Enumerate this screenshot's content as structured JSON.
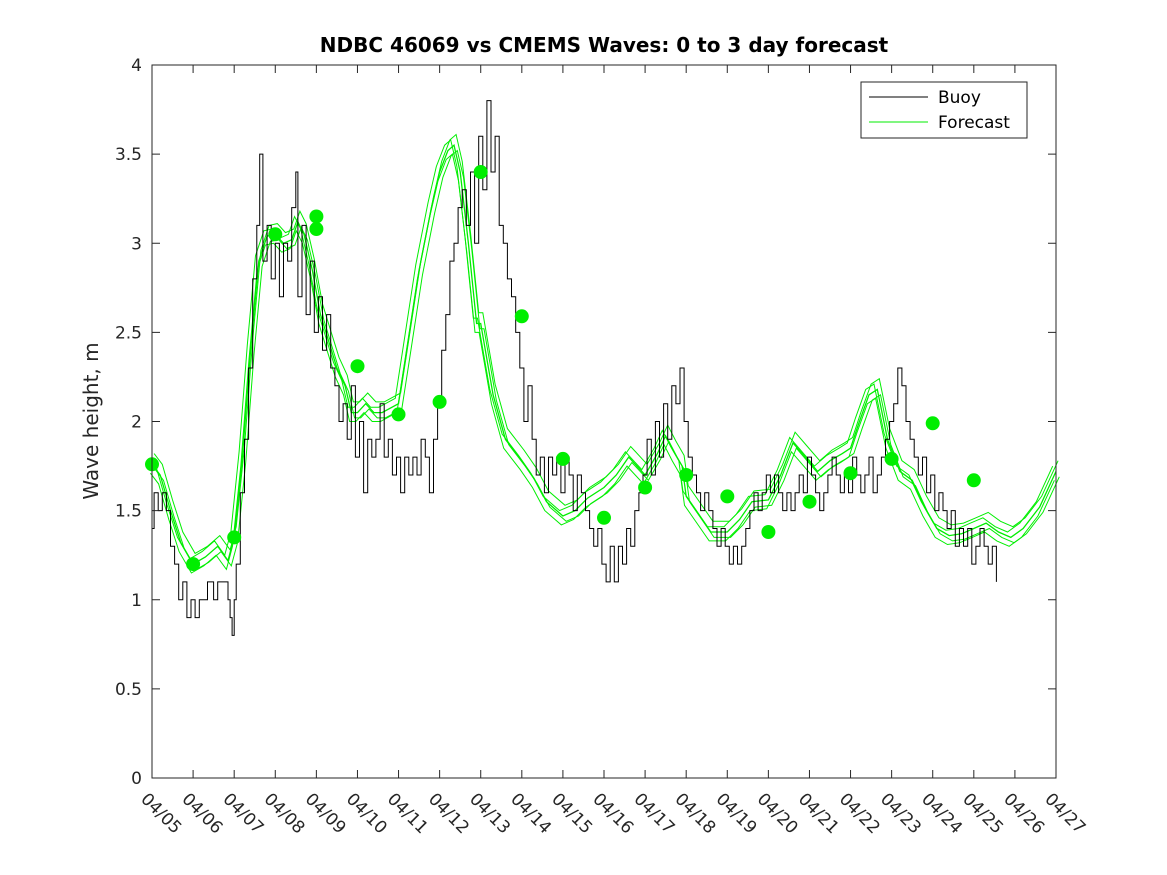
{
  "chart_data": {
    "type": "line",
    "title": "NDBC 46069 vs CMEMS Waves: 0 to 3 day forecast",
    "xlabel": "",
    "ylabel": "Wave height, m",
    "x_ticks": [
      "04/05",
      "04/06",
      "04/07",
      "04/08",
      "04/09",
      "04/10",
      "04/11",
      "04/12",
      "04/13",
      "04/14",
      "04/15",
      "04/16",
      "04/17",
      "04/18",
      "04/19",
      "04/20",
      "04/21",
      "04/22",
      "04/23",
      "04/24",
      "04/25",
      "04/26",
      "04/27"
    ],
    "y_ticks": [
      "0",
      "0.5",
      "1",
      "1.5",
      "2",
      "2.5",
      "3",
      "3.5",
      "4"
    ],
    "xlim": [
      0,
      22
    ],
    "ylim": [
      0,
      4
    ],
    "grid": false,
    "legend_position": "top-right",
    "colors": {
      "buoy": "#000000",
      "forecast": "#00ee00",
      "axes": "#262626"
    },
    "series": [
      {
        "name": "Buoy",
        "points": [
          [
            0,
            1.4
          ],
          [
            0.05,
            1.6
          ],
          [
            0.15,
            1.5
          ],
          [
            0.25,
            1.6
          ],
          [
            0.35,
            1.5
          ],
          [
            0.45,
            1.3
          ],
          [
            0.55,
            1.2
          ],
          [
            0.65,
            1.0
          ],
          [
            0.75,
            1.1
          ],
          [
            0.85,
            0.9
          ],
          [
            0.95,
            1.0
          ],
          [
            1.05,
            0.9
          ],
          [
            1.15,
            1.0
          ],
          [
            1.25,
            1.0
          ],
          [
            1.35,
            1.1
          ],
          [
            1.5,
            1.0
          ],
          [
            1.6,
            1.1
          ],
          [
            1.75,
            1.1
          ],
          [
            1.85,
            1.0
          ],
          [
            1.9,
            0.9
          ],
          [
            1.95,
            0.8
          ],
          [
            2.0,
            1.0
          ],
          [
            2.05,
            1.2
          ],
          [
            2.15,
            1.6
          ],
          [
            2.25,
            1.9
          ],
          [
            2.35,
            2.3
          ],
          [
            2.45,
            2.8
          ],
          [
            2.55,
            3.1
          ],
          [
            2.62,
            3.5
          ],
          [
            2.7,
            2.9
          ],
          [
            2.8,
            3.1
          ],
          [
            2.9,
            2.8
          ],
          [
            3.0,
            3.0
          ],
          [
            3.1,
            2.7
          ],
          [
            3.2,
            3.0
          ],
          [
            3.3,
            2.9
          ],
          [
            3.4,
            3.2
          ],
          [
            3.5,
            3.4
          ],
          [
            3.55,
            2.7
          ],
          [
            3.65,
            3.1
          ],
          [
            3.75,
            2.6
          ],
          [
            3.85,
            2.9
          ],
          [
            3.95,
            2.5
          ],
          [
            4.05,
            2.7
          ],
          [
            4.15,
            2.4
          ],
          [
            4.25,
            2.6
          ],
          [
            4.35,
            2.3
          ],
          [
            4.45,
            2.2
          ],
          [
            4.55,
            2.0
          ],
          [
            4.65,
            2.1
          ],
          [
            4.75,
            1.9
          ],
          [
            4.85,
            2.2
          ],
          [
            4.95,
            1.8
          ],
          [
            5.05,
            2.0
          ],
          [
            5.15,
            1.6
          ],
          [
            5.25,
            1.9
          ],
          [
            5.35,
            1.8
          ],
          [
            5.45,
            1.9
          ],
          [
            5.55,
            2.1
          ],
          [
            5.65,
            1.8
          ],
          [
            5.75,
            1.9
          ],
          [
            5.85,
            1.7
          ],
          [
            5.95,
            1.8
          ],
          [
            6.05,
            1.6
          ],
          [
            6.15,
            1.8
          ],
          [
            6.25,
            1.7
          ],
          [
            6.35,
            1.8
          ],
          [
            6.45,
            1.7
          ],
          [
            6.55,
            1.9
          ],
          [
            6.65,
            1.8
          ],
          [
            6.75,
            1.6
          ],
          [
            6.85,
            1.9
          ],
          [
            6.95,
            2.1
          ],
          [
            7.05,
            2.4
          ],
          [
            7.15,
            2.6
          ],
          [
            7.25,
            2.9
          ],
          [
            7.35,
            3.0
          ],
          [
            7.45,
            3.2
          ],
          [
            7.55,
            3.3
          ],
          [
            7.65,
            3.1
          ],
          [
            7.75,
            3.4
          ],
          [
            7.85,
            3.0
          ],
          [
            7.95,
            3.6
          ],
          [
            8.05,
            3.3
          ],
          [
            8.15,
            3.8
          ],
          [
            8.25,
            3.4
          ],
          [
            8.35,
            3.6
          ],
          [
            8.45,
            3.1
          ],
          [
            8.55,
            3.0
          ],
          [
            8.65,
            2.8
          ],
          [
            8.75,
            2.7
          ],
          [
            8.85,
            2.5
          ],
          [
            8.95,
            2.3
          ],
          [
            9.05,
            2.0
          ],
          [
            9.15,
            2.2
          ],
          [
            9.25,
            1.9
          ],
          [
            9.35,
            1.7
          ],
          [
            9.45,
            1.8
          ],
          [
            9.55,
            1.6
          ],
          [
            9.65,
            1.8
          ],
          [
            9.75,
            1.7
          ],
          [
            9.85,
            1.8
          ],
          [
            9.95,
            1.6
          ],
          [
            10.05,
            1.8
          ],
          [
            10.15,
            1.7
          ],
          [
            10.25,
            1.5
          ],
          [
            10.35,
            1.7
          ],
          [
            10.45,
            1.6
          ],
          [
            10.55,
            1.5
          ],
          [
            10.65,
            1.4
          ],
          [
            10.75,
            1.3
          ],
          [
            10.85,
            1.4
          ],
          [
            10.95,
            1.2
          ],
          [
            11.05,
            1.1
          ],
          [
            11.15,
            1.3
          ],
          [
            11.25,
            1.1
          ],
          [
            11.35,
            1.3
          ],
          [
            11.45,
            1.2
          ],
          [
            11.55,
            1.4
          ],
          [
            11.65,
            1.3
          ],
          [
            11.75,
            1.5
          ],
          [
            11.85,
            1.6
          ],
          [
            11.95,
            1.7
          ],
          [
            12.05,
            1.9
          ],
          [
            12.15,
            1.7
          ],
          [
            12.25,
            2.0
          ],
          [
            12.35,
            1.8
          ],
          [
            12.45,
            2.1
          ],
          [
            12.55,
            1.9
          ],
          [
            12.65,
            2.2
          ],
          [
            12.75,
            2.1
          ],
          [
            12.85,
            2.3
          ],
          [
            12.95,
            2.0
          ],
          [
            13.05,
            1.8
          ],
          [
            13.15,
            1.7
          ],
          [
            13.25,
            1.6
          ],
          [
            13.35,
            1.5
          ],
          [
            13.45,
            1.6
          ],
          [
            13.55,
            1.5
          ],
          [
            13.65,
            1.4
          ],
          [
            13.75,
            1.3
          ],
          [
            13.85,
            1.4
          ],
          [
            13.95,
            1.3
          ],
          [
            14.05,
            1.2
          ],
          [
            14.15,
            1.3
          ],
          [
            14.25,
            1.2
          ],
          [
            14.35,
            1.3
          ],
          [
            14.45,
            1.4
          ],
          [
            14.55,
            1.5
          ],
          [
            14.65,
            1.6
          ],
          [
            14.75,
            1.5
          ],
          [
            14.85,
            1.6
          ],
          [
            14.95,
            1.7
          ],
          [
            15.05,
            1.6
          ],
          [
            15.15,
            1.7
          ],
          [
            15.25,
            1.6
          ],
          [
            15.35,
            1.5
          ],
          [
            15.45,
            1.6
          ],
          [
            15.55,
            1.5
          ],
          [
            15.65,
            1.6
          ],
          [
            15.75,
            1.7
          ],
          [
            15.85,
            1.6
          ],
          [
            15.95,
            1.8
          ],
          [
            16.05,
            1.7
          ],
          [
            16.15,
            1.6
          ],
          [
            16.25,
            1.5
          ],
          [
            16.35,
            1.6
          ],
          [
            16.45,
            1.7
          ],
          [
            16.55,
            1.8
          ],
          [
            16.65,
            1.7
          ],
          [
            16.75,
            1.6
          ],
          [
            16.85,
            1.7
          ],
          [
            16.95,
            1.6
          ],
          [
            17.05,
            1.8
          ],
          [
            17.15,
            1.7
          ],
          [
            17.25,
            1.6
          ],
          [
            17.35,
            1.7
          ],
          [
            17.45,
            1.8
          ],
          [
            17.55,
            1.6
          ],
          [
            17.65,
            1.7
          ],
          [
            17.75,
            1.8
          ],
          [
            17.85,
            1.9
          ],
          [
            17.95,
            2.0
          ],
          [
            18.05,
            2.1
          ],
          [
            18.15,
            2.3
          ],
          [
            18.25,
            2.2
          ],
          [
            18.35,
            2.0
          ],
          [
            18.45,
            1.9
          ],
          [
            18.55,
            1.8
          ],
          [
            18.65,
            1.7
          ],
          [
            18.75,
            1.8
          ],
          [
            18.85,
            1.6
          ],
          [
            18.95,
            1.7
          ],
          [
            19.05,
            1.5
          ],
          [
            19.15,
            1.6
          ],
          [
            19.25,
            1.5
          ],
          [
            19.35,
            1.4
          ],
          [
            19.45,
            1.5
          ],
          [
            19.55,
            1.3
          ],
          [
            19.65,
            1.4
          ],
          [
            19.75,
            1.3
          ],
          [
            19.85,
            1.4
          ],
          [
            19.95,
            1.2
          ],
          [
            20.05,
            1.3
          ],
          [
            20.15,
            1.4
          ],
          [
            20.25,
            1.3
          ],
          [
            20.35,
            1.2
          ],
          [
            20.45,
            1.3
          ],
          [
            20.55,
            1.1
          ]
        ]
      },
      {
        "name": "Forecast",
        "points": [
          [
            0,
            1.76
          ],
          [
            0.2,
            1.7
          ],
          [
            0.45,
            1.5
          ],
          [
            0.7,
            1.32
          ],
          [
            1.0,
            1.2
          ],
          [
            1.3,
            1.24
          ],
          [
            1.6,
            1.3
          ],
          [
            1.85,
            1.22
          ],
          [
            2.0,
            1.35
          ],
          [
            2.2,
            1.8
          ],
          [
            2.4,
            2.4
          ],
          [
            2.6,
            2.9
          ],
          [
            2.8,
            3.04
          ],
          [
            3.0,
            3.05
          ],
          [
            3.2,
            3.0
          ],
          [
            3.4,
            3.02
          ],
          [
            3.55,
            3.12
          ],
          [
            3.7,
            3.05
          ],
          [
            3.9,
            2.85
          ],
          [
            4.1,
            2.6
          ],
          [
            4.3,
            2.45
          ],
          [
            4.5,
            2.3
          ],
          [
            4.7,
            2.2
          ],
          [
            4.85,
            2.05
          ],
          [
            5.0,
            2.05
          ],
          [
            5.2,
            2.1
          ],
          [
            5.4,
            2.05
          ],
          [
            5.6,
            2.05
          ],
          [
            6.0,
            2.1
          ],
          [
            6.2,
            2.4
          ],
          [
            6.5,
            2.85
          ],
          [
            6.8,
            3.2
          ],
          [
            7.0,
            3.4
          ],
          [
            7.2,
            3.52
          ],
          [
            7.35,
            3.55
          ],
          [
            7.5,
            3.4
          ],
          [
            7.7,
            3.0
          ],
          [
            7.9,
            2.55
          ],
          [
            8.0,
            2.55
          ],
          [
            8.3,
            2.15
          ],
          [
            8.6,
            1.9
          ],
          [
            9.0,
            1.78
          ],
          [
            9.3,
            1.68
          ],
          [
            9.6,
            1.55
          ],
          [
            10.0,
            1.47
          ],
          [
            10.3,
            1.5
          ],
          [
            10.6,
            1.57
          ],
          [
            11.0,
            1.63
          ],
          [
            11.3,
            1.7
          ],
          [
            11.6,
            1.8
          ],
          [
            12.0,
            1.7
          ],
          [
            12.3,
            1.82
          ],
          [
            12.5,
            1.92
          ],
          [
            12.7,
            1.83
          ],
          [
            12.9,
            1.75
          ],
          [
            13.0,
            1.58
          ],
          [
            13.3,
            1.48
          ],
          [
            13.6,
            1.38
          ],
          [
            14.0,
            1.38
          ],
          [
            14.3,
            1.45
          ],
          [
            14.6,
            1.55
          ],
          [
            15.0,
            1.56
          ],
          [
            15.3,
            1.7
          ],
          [
            15.6,
            1.88
          ],
          [
            15.9,
            1.8
          ],
          [
            16.2,
            1.72
          ],
          [
            16.5,
            1.78
          ],
          [
            16.8,
            1.82
          ],
          [
            17.0,
            1.85
          ],
          [
            17.2,
            1.99
          ],
          [
            17.45,
            2.15
          ],
          [
            17.65,
            2.18
          ],
          [
            17.9,
            1.9
          ],
          [
            18.2,
            1.72
          ],
          [
            18.5,
            1.67
          ],
          [
            18.8,
            1.52
          ],
          [
            19.1,
            1.4
          ],
          [
            19.4,
            1.36
          ],
          [
            19.7,
            1.37
          ],
          [
            20.0,
            1.4
          ],
          [
            20.3,
            1.43
          ],
          [
            20.6,
            1.38
          ],
          [
            20.9,
            1.35
          ],
          [
            21.2,
            1.4
          ],
          [
            21.6,
            1.52
          ],
          [
            22.0,
            1.72
          ]
        ]
      },
      {
        "name": "",
        "kind": "forecast-marker",
        "points": [
          [
            0,
            1.76
          ],
          [
            1,
            1.2
          ],
          [
            2,
            1.35
          ],
          [
            3,
            3.05
          ],
          [
            4,
            3.15
          ],
          [
            4,
            3.08
          ],
          [
            5,
            2.31
          ],
          [
            6,
            2.04
          ],
          [
            7,
            2.11
          ],
          [
            8,
            3.4
          ],
          [
            9,
            2.59
          ],
          [
            10,
            1.79
          ],
          [
            11,
            1.46
          ],
          [
            12,
            1.63
          ],
          [
            13,
            1.7
          ],
          [
            14,
            1.58
          ],
          [
            15,
            1.38
          ],
          [
            16,
            1.55
          ],
          [
            17,
            1.71
          ],
          [
            18,
            1.79
          ],
          [
            19,
            1.99
          ],
          [
            20,
            1.67
          ]
        ]
      }
    ]
  }
}
